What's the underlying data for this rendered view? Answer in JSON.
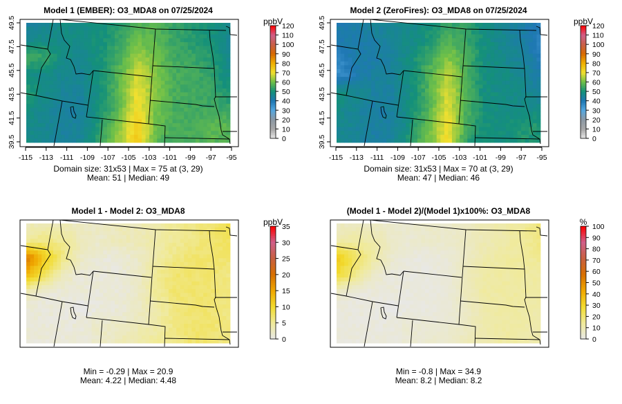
{
  "chart_data": [
    {
      "type": "heatmap",
      "title": "Model 1 (EMBER): O3_MDA8 on 07/25/2024",
      "units": "ppbV",
      "field": "model1",
      "colorbar": {
        "label": "ppbV",
        "min": 0,
        "max": 120,
        "ticks": [
          0,
          10,
          20,
          30,
          40,
          50,
          60,
          70,
          80,
          90,
          100,
          110,
          120
        ]
      },
      "xticks": [
        "-115",
        "-113",
        "-111",
        "-109",
        "-107",
        "-105",
        "-103",
        "-101",
        "-99",
        "-97",
        "-95"
      ],
      "yticks": [
        "39.5",
        "41.5",
        "43.5",
        "45.5",
        "47.5",
        "49.5"
      ],
      "xlim": [
        -115,
        -95
      ],
      "ylim": [
        39.5,
        49.5
      ],
      "caption_lines": [
        "Domain size: 31x53 | Max = 75 at (3, 29)",
        "Mean: 51 |  Median: 49"
      ]
    },
    {
      "type": "heatmap",
      "title": "Model 2 (ZeroFires): O3_MDA8 on 07/25/2024",
      "units": "ppbV",
      "field": "model2",
      "colorbar": {
        "label": "ppbV",
        "min": 0,
        "max": 120,
        "ticks": [
          0,
          10,
          20,
          30,
          40,
          50,
          60,
          70,
          80,
          90,
          100,
          110,
          120
        ]
      },
      "xticks": [
        "-115",
        "-113",
        "-111",
        "-109",
        "-107",
        "-105",
        "-103",
        "-101",
        "-99",
        "-97",
        "-95"
      ],
      "yticks": [
        "39.5",
        "41.5",
        "43.5",
        "45.5",
        "47.5",
        "49.5"
      ],
      "xlim": [
        -115,
        -95
      ],
      "ylim": [
        39.5,
        49.5
      ],
      "caption_lines": [
        "Domain size: 31x53 | Max = 70 at (3, 29)",
        "Mean: 47 |  Median: 46"
      ]
    },
    {
      "type": "heatmap",
      "title": "Model 1 - Model 2: O3_MDA8",
      "units": "ppbV",
      "field": "diff",
      "colorbar": {
        "label": "ppbV",
        "min": 0,
        "max": 35,
        "ticks": [
          0,
          5,
          10,
          15,
          20,
          25,
          30,
          35
        ]
      },
      "caption_lines": [
        "Min = -0.29 | Max = 20.9",
        "Mean: 4.22 |  Median: 4.48"
      ]
    },
    {
      "type": "heatmap",
      "title": "(Model 1 - Model 2)/(Model 1)x100%: O3_MDA8",
      "units": "%",
      "field": "pct",
      "colorbar": {
        "label": "%",
        "min": 0,
        "max": 100,
        "ticks": [
          0,
          10,
          20,
          30,
          40,
          50,
          60,
          70,
          80,
          90,
          100
        ]
      },
      "caption_lines": [
        "Min = -0.8 | Max = 34.9",
        "Mean: 8.2 |  Median: 8.2"
      ]
    }
  ],
  "grids_note_rows_north_to_south": true,
  "grid_model1": [
    [
      44,
      46,
      48,
      48,
      49,
      52,
      56,
      58,
      54,
      52,
      50,
      48
    ],
    [
      46,
      48,
      48,
      48,
      50,
      54,
      60,
      58,
      54,
      52,
      50,
      46
    ],
    [
      56,
      54,
      48,
      47,
      50,
      56,
      64,
      60,
      55,
      54,
      52,
      46
    ],
    [
      48,
      48,
      46,
      46,
      50,
      58,
      68,
      62,
      56,
      55,
      53,
      48
    ],
    [
      52,
      48,
      45,
      45,
      50,
      58,
      70,
      62,
      56,
      55,
      54,
      50
    ],
    [
      50,
      46,
      44,
      44,
      50,
      58,
      72,
      60,
      56,
      55,
      55,
      54
    ],
    [
      48,
      46,
      44,
      45,
      52,
      62,
      74,
      60,
      56,
      56,
      58,
      58
    ],
    [
      48,
      46,
      44,
      46,
      54,
      64,
      75,
      58,
      55,
      56,
      58,
      56
    ]
  ],
  "grid_diff": [
    [
      3,
      3,
      3,
      2,
      2,
      3,
      3,
      4,
      5,
      6,
      7,
      9
    ],
    [
      5,
      6,
      5,
      3,
      2,
      3,
      3,
      4,
      5,
      6,
      7,
      8
    ],
    [
      19,
      12,
      6,
      2,
      1,
      1,
      2,
      4,
      6,
      7,
      7,
      7
    ],
    [
      14,
      8,
      3,
      1,
      1,
      1,
      2,
      5,
      7,
      7,
      7,
      6
    ],
    [
      3,
      1,
      1,
      1,
      1,
      1,
      2,
      5,
      7,
      7,
      7,
      6
    ],
    [
      1,
      1,
      1,
      0,
      1,
      1,
      2,
      4,
      6,
      7,
      7,
      6
    ],
    [
      1,
      1,
      1,
      1,
      2,
      2,
      3,
      4,
      6,
      7,
      7,
      6
    ],
    [
      1,
      1,
      1,
      1,
      2,
      3,
      4,
      5,
      6,
      7,
      7,
      6
    ]
  ],
  "colormaps": {
    "ppb": [
      "#e8e8e8",
      "#a8a8a8",
      "#8c98a4",
      "#56a8e0",
      "#1f78b4",
      "#14907a",
      "#6cbf4a",
      "#f0e030",
      "#f0b000",
      "#d86a00",
      "#c8604a",
      "#d0608a",
      "#ff0000"
    ],
    "diff": [
      "#e8e8e8",
      "#f0ea9a",
      "#f2dc30",
      "#f0a800",
      "#d87000",
      "#c86040",
      "#d0608a",
      "#ff0000"
    ]
  }
}
